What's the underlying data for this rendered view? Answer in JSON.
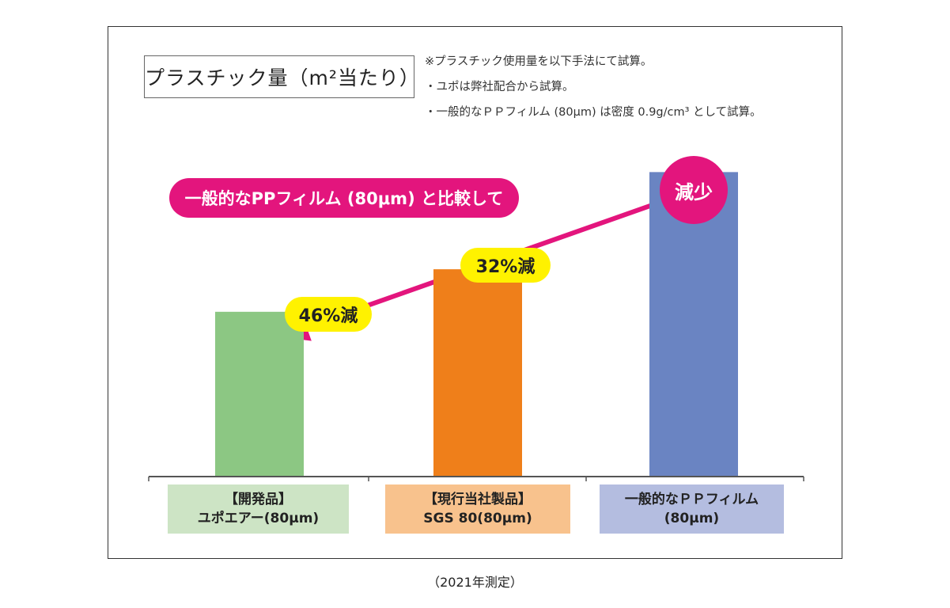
{
  "title": "プラスチック量（m²当たり）",
  "notes": [
    "※プラスチック使用量を以下手法にて試算。",
    "・ユポは弊社配合から試算。",
    "・一般的なＰＰフィルム (80μm) は密度 0.9g/cm³ として試算。"
  ],
  "comparison_label": "一般的なPPフィルム (80μm) と比較して",
  "reduction_label": "減少",
  "footnote": "（2021年測定）",
  "chart_data": {
    "type": "bar",
    "categories": [
      {
        "line1": "【開発品】",
        "line2": "ユポエアー(80μm)"
      },
      {
        "line1": "【現行当社製品】",
        "line2": "SGS 80(80μm)"
      },
      {
        "line1": "一般的なＰＰフィルム",
        "line2": "(80μm)"
      }
    ],
    "values": [
      54,
      68,
      100
    ],
    "ylim": [
      0,
      110
    ],
    "annotations": [
      {
        "text": "46%減",
        "category_index": 0
      },
      {
        "text": "32%減",
        "category_index": 1
      }
    ],
    "colors": {
      "bars": [
        "#8cc783",
        "#ef7f1a",
        "#6a84c2"
      ],
      "labels_bg": [
        "#cde4c5",
        "#f8c28d",
        "#b4bde0"
      ],
      "accent": "#e3157d",
      "highlight": "#fff200"
    },
    "grid": false,
    "legend": "none"
  }
}
